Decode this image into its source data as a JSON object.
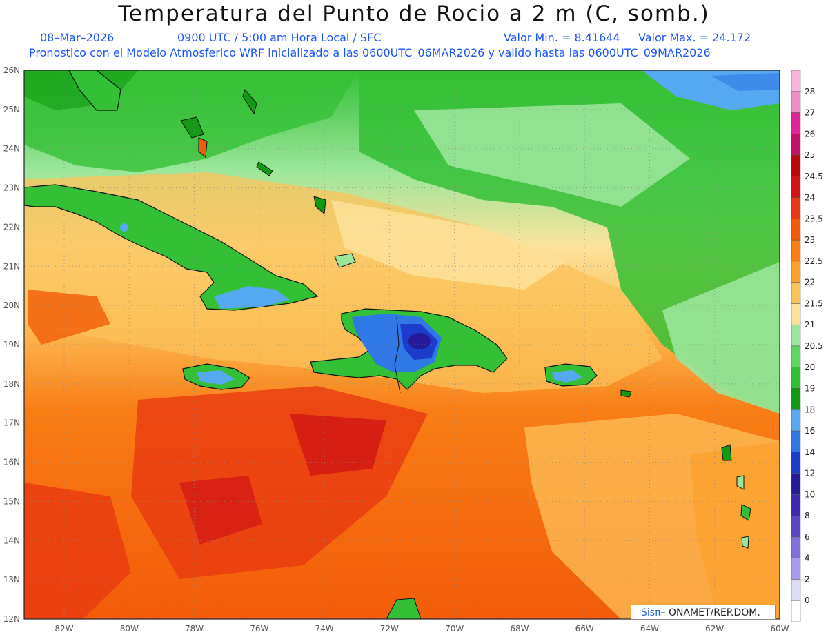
{
  "title": "Temperatura del Punto de Rocio a 2 m (C, somb.)",
  "date": "08–Mar–2026",
  "time_info": "0900 UTC / 5:00 am Hora Local / SFC",
  "value_min": "Valor Min. = 8.41644",
  "value_max": "Valor Max. = 24.172",
  "forecast_info": "Pronostico con el Modelo Atmosferico WRF inicializado a las 0600UTC_06MAR2026 y valido hasta las   0600UTC_09MAR2026",
  "credit_logo": "Sisπ",
  "credit_text": "– ONAMET/REP.DOM.",
  "lat_labels": [
    "26N",
    "25N",
    "24N",
    "23N",
    "22N",
    "21N",
    "20N",
    "19N",
    "18N",
    "17N",
    "16N",
    "15N",
    "14N",
    "13N",
    "12N"
  ],
  "lon_labels": [
    "82W",
    "80W",
    "78W",
    "76W",
    "74W",
    "72W",
    "70W",
    "68W",
    "66W",
    "64W",
    "62W",
    "60W"
  ],
  "colorbar": {
    "levels": [
      "0",
      "2",
      "4",
      "6",
      "8",
      "10",
      "12",
      "14",
      "16",
      "18",
      "19",
      "20",
      "20.5",
      "21",
      "21.5",
      "22",
      "22.5",
      "23",
      "23.5",
      "24",
      "24.5",
      "25",
      "26",
      "27",
      "28"
    ],
    "colors": [
      "#ffffff",
      "#dcdcf5",
      "#a89cf0",
      "#8470dc",
      "#5a48c8",
      "#3d2ab0",
      "#261a9a",
      "#1c3ccc",
      "#2f78e6",
      "#56a8f0",
      "#129a12",
      "#34c034",
      "#5fd65f",
      "#9ae69a",
      "#fbe39a",
      "#fcc25a",
      "#fca12c",
      "#f97d14",
      "#f25c08",
      "#e83a12",
      "#d21414",
      "#b90808",
      "#c0146a",
      "#e0249a",
      "#f08cc8",
      "#f8b4dc"
    ]
  }
}
